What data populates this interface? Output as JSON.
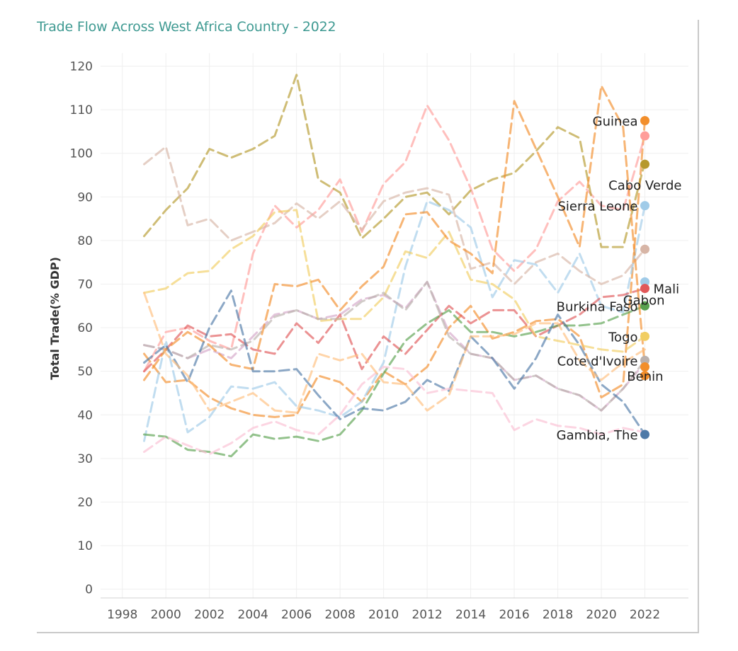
{
  "chart_data": {
    "type": "line",
    "title": "Trade Flow Across West Africa Country - 2022",
    "xlabel": "",
    "ylabel": "Total Trade(% GDP)",
    "xlim": [
      1997,
      2024
    ],
    "ylim": [
      -2,
      123
    ],
    "x_ticks": [
      1998,
      2000,
      2002,
      2004,
      2006,
      2008,
      2010,
      2012,
      2014,
      2016,
      2018,
      2020,
      2022
    ],
    "y_ticks": [
      0,
      10,
      20,
      30,
      40,
      50,
      60,
      70,
      80,
      90,
      100,
      110,
      120
    ],
    "grid": true,
    "line_style": "dashed",
    "x": [
      1999,
      2000,
      2001,
      2002,
      2003,
      2004,
      2005,
      2006,
      2007,
      2008,
      2009,
      2010,
      2011,
      2012,
      2013,
      2014,
      2015,
      2016,
      2017,
      2018,
      2019,
      2020,
      2021,
      2022
    ],
    "series": [
      {
        "name": "Guinea",
        "color": "#f28e2b",
        "values": [
          54,
          47.5,
          48,
          44,
          41.5,
          40,
          39.5,
          40,
          49,
          47.5,
          43,
          50,
          47,
          51,
          60,
          65,
          57.5,
          59,
          61.5,
          62,
          58,
          44,
          47,
          107.5
        ]
      },
      {
        "name": "",
        "color": "#ff9d9a",
        "values": [
          50,
          59,
          60,
          57,
          55,
          77,
          88,
          83,
          87,
          94,
          82,
          93,
          98,
          111,
          103,
          92,
          78,
          73,
          78,
          89,
          93.5,
          88,
          87,
          104
        ]
      },
      {
        "name": "Cabo Verde",
        "color": "#b6992d",
        "values": [
          81,
          87,
          92,
          101,
          99,
          101,
          104,
          118,
          94,
          91,
          80.5,
          85,
          90,
          91,
          86,
          91.5,
          94,
          95.5,
          100.5,
          106,
          103.5,
          78.5,
          78.5,
          98
        ]
      },
      {
        "name": "Sierra Leone",
        "color": "#a0cbe8",
        "values": [
          34,
          57,
          36,
          39.5,
          46.5,
          46,
          47.5,
          42,
          41,
          39.5,
          43,
          52,
          74,
          89,
          87,
          83,
          67,
          75.5,
          74.5,
          68,
          77,
          65,
          63.5,
          88
        ]
      },
      {
        "name": "Gabon",
        "color": "#d4a6c8",
        "values": [
          56,
          55,
          53,
          55,
          53,
          58,
          63,
          64,
          62,
          63,
          66.5,
          67.5,
          64.5,
          70.5,
          59,
          54,
          53,
          48,
          49,
          46,
          44.5,
          41,
          46,
          52
        ]
      },
      {
        "name": "",
        "color": "#d7b5a6",
        "values": [
          97.5,
          101.5,
          83.5,
          85,
          80,
          82,
          84,
          88.5,
          85,
          89,
          82.5,
          89,
          91,
          92,
          90.5,
          73.5,
          75,
          70,
          75,
          77,
          73,
          70,
          72,
          78
        ]
      },
      {
        "name": "Mali",
        "color": "#e15759",
        "values": [
          50,
          55,
          60.5,
          58,
          58.5,
          55,
          54,
          61,
          56.5,
          63,
          50.5,
          58,
          54,
          59.5,
          65,
          61,
          64,
          64,
          58,
          60.5,
          63,
          67,
          67.5,
          69
        ]
      },
      {
        "name": "Burkina Faso",
        "color": "#59a14f",
        "values": [
          35.5,
          35,
          32,
          31.5,
          30.5,
          35.5,
          34.5,
          35,
          34,
          35.5,
          41,
          49.5,
          57,
          61,
          64,
          59,
          59,
          58,
          59,
          60.5,
          60.5,
          61,
          63,
          65
        ]
      },
      {
        "name": "Togo",
        "color": "#f1ce63",
        "values": [
          68,
          69,
          72.5,
          73,
          78,
          81,
          86.5,
          87,
          61.5,
          62,
          62,
          67,
          77.5,
          76,
          82,
          71,
          70,
          66.5,
          58,
          57,
          56,
          55,
          54.5,
          58
        ]
      },
      {
        "name": "Cote d'Ivoire",
        "color": "#bab0ac",
        "values": [
          56,
          55,
          53,
          56,
          55,
          57,
          62.5,
          64,
          62,
          62,
          66,
          68,
          64,
          70.5,
          58,
          54,
          53,
          48,
          49,
          46,
          44.5,
          41,
          46,
          52.5
        ]
      },
      {
        "name": "Benin",
        "color": "#f28e2b",
        "values": [
          48,
          55,
          59,
          56,
          51.5,
          50.5,
          70,
          69.5,
          71,
          64,
          69.5,
          74,
          86,
          86.5,
          80,
          77,
          72.5,
          112,
          101,
          90,
          78.5,
          115.5,
          106,
          51
        ]
      },
      {
        "name": "Gambia, The",
        "color": "#4e79a7",
        "values": [
          52,
          56,
          47.5,
          60,
          68.5,
          50,
          50,
          50.5,
          44.5,
          39,
          41.5,
          41,
          43,
          48,
          45.5,
          58,
          53,
          46,
          53,
          63,
          56,
          47,
          43,
          35.5
        ]
      },
      {
        "name": "",
        "color": "#fabfd2",
        "values": [
          31.5,
          35,
          33,
          31,
          33.5,
          37,
          38.5,
          36.5,
          35.5,
          40,
          47,
          51,
          50.5,
          45,
          46,
          45.5,
          45,
          36.5,
          39,
          37.5,
          37,
          35.5,
          37,
          36
        ]
      },
      {
        "name": "",
        "color": "#ffbe7d",
        "values": [
          68,
          54,
          49,
          41,
          43,
          45,
          41,
          40.5,
          54,
          52.5,
          54,
          47.5,
          47,
          41,
          44.5,
          58,
          58,
          58.5,
          61,
          61,
          52.5,
          48,
          52,
          55
        ]
      }
    ],
    "end_labels": [
      {
        "text": "Guinea",
        "color": "#f28e2b",
        "y": 107.5
      },
      {
        "text": "",
        "color": "#ff9d9a",
        "y": 104
      },
      {
        "text": "Cabo Verde",
        "color": "#b6992d",
        "y": 97.5
      },
      {
        "text": "Sierra Leone",
        "color": "#a0cbe8",
        "y": 88
      },
      {
        "text": "",
        "color": "#d7b5a6",
        "y": 78
      },
      {
        "text": "Gabon",
        "color": "#a0cbe8",
        "y": 70.5
      },
      {
        "text": "Mali",
        "color": "#e15759",
        "y": 69
      },
      {
        "text": "Burkina Faso",
        "color": "#59a14f",
        "y": 65
      },
      {
        "text": "Togo",
        "color": "#f1ce63",
        "y": 58
      },
      {
        "text": "Cote d'Ivoire",
        "color": "#bab0ac",
        "y": 52.5
      },
      {
        "text": "",
        "color": "#f28e2b",
        "y": 51
      },
      {
        "text": "Benin",
        "color": "#f28e2b",
        "y": 49
      },
      {
        "text": "Gambia, The",
        "color": "#4e79a7",
        "y": 35.5
      }
    ]
  }
}
